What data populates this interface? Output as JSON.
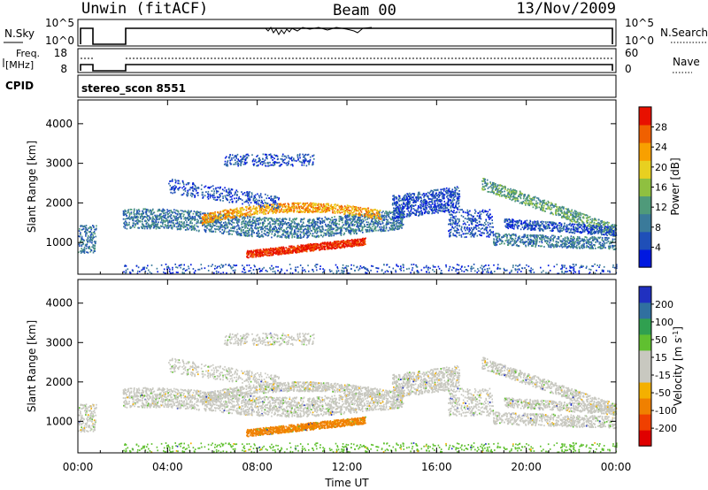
{
  "header": {
    "station": "Unwin (fitACF)",
    "beam": "Beam 00",
    "date": "13/Nov/2009"
  },
  "top_panels": {
    "nsky_label": "N.Sky",
    "nsky_ticks": [
      "10^5",
      "10^0"
    ],
    "nsearch_label": "N.Search",
    "nsearch_ticks": [
      "10^5",
      "10^0"
    ],
    "freq_label_line1": "Freq.",
    "freq_label_line2": "[MHz]",
    "freq_ticks": [
      "18",
      "8"
    ],
    "nave_label": "Nave",
    "nave_ticks": [
      "60",
      "0"
    ],
    "cpid_label": "CPID",
    "cpid_value": "stereo_scon 8551"
  },
  "colors": {
    "power_scale": [
      "#0018e0",
      "#1f4fb8",
      "#3a7a9a",
      "#4f9a7a",
      "#8fc040",
      "#e8d020",
      "#f8a000",
      "#f06000",
      "#e81000"
    ],
    "velocity_scale": [
      "#e00000",
      "#f04000",
      "#f08000",
      "#f4b000",
      "#c8c8c0",
      "#c8c8c0",
      "#60c030",
      "#30a050",
      "#3070a0",
      "#2030c0"
    ]
  },
  "chart_data": [
    {
      "type": "heatmap",
      "ylabel": "Slant Range [km]",
      "ylim": [
        200,
        4600
      ],
      "y_ticks": [
        "4000",
        "3000",
        "2000",
        "1000"
      ],
      "colorbar_label": "Power [dB]",
      "colorbar_ticks": [
        "28",
        "24",
        "20",
        "16",
        "12",
        "8",
        "4"
      ],
      "grid": false
    },
    {
      "type": "heatmap",
      "xlabel": "Time UT",
      "ylabel": "Slant Range [km]",
      "xlim": [
        "00:00",
        "24:00"
      ],
      "x_ticks": [
        "00:00",
        "04:00",
        "08:00",
        "12:00",
        "16:00",
        "20:00",
        "00:00"
      ],
      "ylim": [
        200,
        4600
      ],
      "y_ticks": [
        "4000",
        "3000",
        "2000",
        "1000"
      ],
      "colorbar_label": "Velocity [m s^-1]",
      "colorbar_ticks": [
        "200",
        "100",
        "50",
        "15",
        "-15",
        "-50",
        "-100",
        "-200"
      ],
      "grid": false
    }
  ]
}
